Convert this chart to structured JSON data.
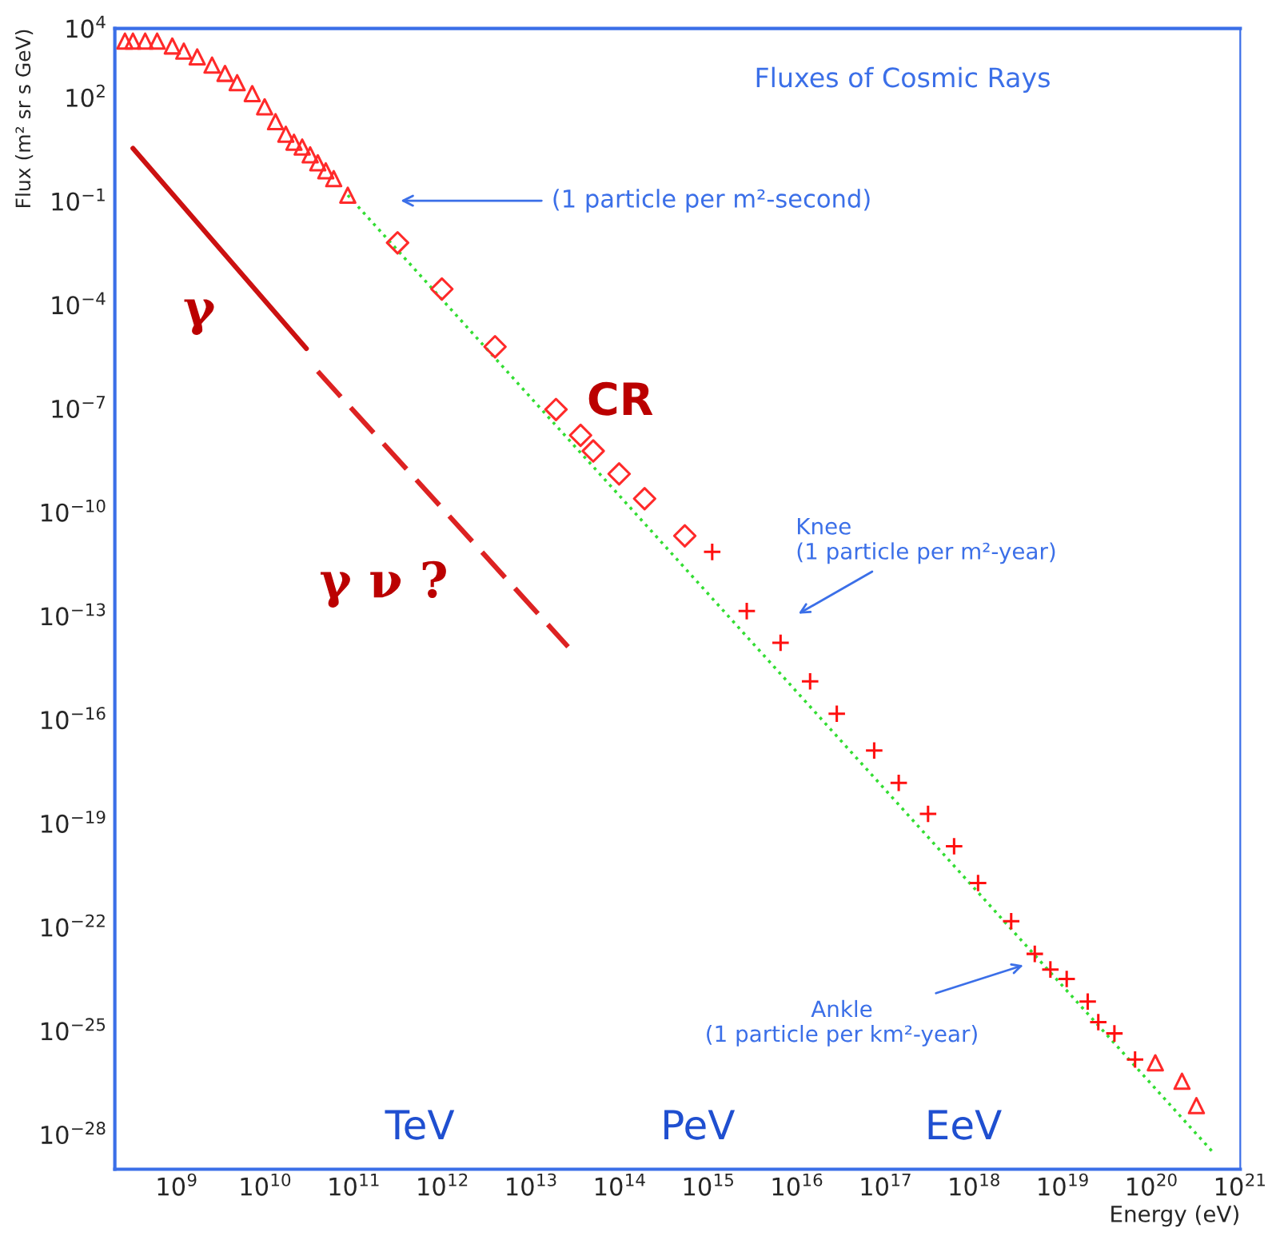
{
  "chart_data": {
    "type": "scatter",
    "title": "Fluxes of Cosmic Rays",
    "xlabel": "Energy (eV)",
    "ylabel": "Flux (m² sr s GeV)",
    "log": "xy",
    "xlim": [
      200000000.0,
      1e+21
    ],
    "ylim": [
      1e-29,
      10000.0
    ],
    "xticks": [
      {
        "value": 1000000000.0,
        "label": "10$^{9}$"
      },
      {
        "value": 10000000000.0,
        "label": "10$^{10}$"
      },
      {
        "value": 100000000000.0,
        "label": "10$^{11}$"
      },
      {
        "value": 1000000000000.0,
        "label": "10$^{12}$"
      },
      {
        "value": 10000000000000.0,
        "label": "10$^{13}$"
      },
      {
        "value": 100000000000000.0,
        "label": "10$^{14}$"
      },
      {
        "value": 1000000000000000.0,
        "label": "10$^{15}$"
      },
      {
        "value": 1e+16,
        "label": "10$^{16}$"
      },
      {
        "value": 1e+17,
        "label": "10$^{17}$"
      },
      {
        "value": 1e+18,
        "label": "10$^{18}$"
      },
      {
        "value": 1e+19,
        "label": "10$^{19}$"
      },
      {
        "value": 1e+20,
        "label": "10$^{20}$"
      },
      {
        "value": 1e+21,
        "label": "10$^{21}$"
      }
    ],
    "yticks": [
      {
        "value": 10000.0,
        "label": "10$^{4}$"
      },
      {
        "value": 100.0,
        "label": "10$^{2}$"
      },
      {
        "value": 0.1,
        "label": "10$^{−1}$"
      },
      {
        "value": 0.0001,
        "label": "10$^{−4}$"
      },
      {
        "value": 1e-07,
        "label": "10$^{−7}$"
      },
      {
        "value": 1e-10,
        "label": "10$^{−10}$"
      },
      {
        "value": 1e-13,
        "label": "10$^{−13}$"
      },
      {
        "value": 1e-16,
        "label": "10$^{−16}$"
      },
      {
        "value": 1e-19,
        "label": "10$^{−19}$"
      },
      {
        "value": 1e-22,
        "label": "10$^{−22}$"
      },
      {
        "value": 1e-25,
        "label": "10$^{−25}$"
      },
      {
        "value": 1e-28,
        "label": "10$^{−28}$"
      }
    ],
    "series": [
      {
        "marker": "triangle",
        "color": "#ff2a2a",
        "x": [
          260000000.0,
          320000000.0,
          440000000.0,
          600000000.0,
          890000000.0,
          1200000000.0,
          1700000000.0,
          2500000000.0,
          3500000000.0,
          4800000000.0,
          7100000000.0,
          9800000000.0,
          13000000000.0,
          17000000000.0,
          21000000000.0,
          26000000000.0,
          32000000000.0,
          39000000000.0,
          48000000000.0,
          59000000000.0,
          85000000000.0,
          1.1e+20,
          2.2e+20,
          3.2e+20
        ],
        "values": [
          4300.0,
          4300.0,
          4300.0,
          4300.0,
          3100.0,
          2200.0,
          1500.0,
          870.0,
          500.0,
          270.0,
          130.0,
          54,
          20,
          8.7,
          5.1,
          3.7,
          2.2,
          1.3,
          0.76,
          0.45,
          0.15,
          1.2e-26,
          3.5e-27,
          6.9e-28
        ]
      },
      {
        "marker": "diamond",
        "color": "#ff2a2a",
        "x": [
          310000000000.0,
          980000000000.0,
          3900000000000.0,
          19000000000000.0,
          36000000000000.0,
          50000000000000.0,
          98000000000000.0,
          190000000000000.0,
          540000000000000.0
        ],
        "values": [
          0.0063,
          0.00029,
          6.2e-06,
          9.5e-08,
          1.7e-08,
          6e-09,
          1.3e-09,
          2.5e-10,
          2.1e-11
        ]
      },
      {
        "marker": "cross",
        "color": "#ff1010",
        "x": [
          1100000000000000.0,
          2700000000000000.0,
          6500000000000000.0,
          1.4e+16,
          2.8e+16,
          7.4e+16,
          1.4e+17,
          3e+17,
          5.9e+17,
          1.1e+18,
          2.6e+18,
          4.8e+18,
          7.2e+18,
          1.1e+19,
          1.9e+19,
          2.5e+19,
          3.8e+19,
          6.5e+19
        ],
        "values": [
          7.2e-12,
          1.4e-13,
          1.7e-14,
          1.3e-15,
          1.5e-16,
          1.3e-17,
          1.5e-18,
          1.9e-19,
          2.2e-20,
          1.9e-21,
          1.5e-22,
          1.7e-23,
          6e-24,
          3.2e-24,
          7.1e-25,
          1.8e-25,
          8.5e-26,
          1.5e-26
        ]
      },
      {
        "type": "line",
        "line_style": "dotted",
        "color": "#33dd33",
        "x": [
          85000000000.0,
          5.1e+20
        ],
        "values": [
          0.15,
          2.8e-29
        ]
      },
      {
        "type": "line",
        "line_style": "solid",
        "color": "#cc1111",
        "x": [
          320000000.0,
          29000000000.0
        ],
        "values": [
          3.4,
          5.5e-06
        ]
      },
      {
        "type": "line",
        "line_style": "dashed",
        "color": "#dd2222",
        "x": [
          39000000000.0,
          26000000000000.0
        ],
        "values": [
          1.2e-06,
          1.3e-14
        ]
      }
    ],
    "annotations": [
      "(1 particle per m²-second)",
      "Knee\n(1 particle per m²-year)",
      "Ankle\n(1 particle per km²-year)",
      "γ",
      "γ ν ?",
      "CR",
      "TeV",
      "PeV",
      "EeV"
    ]
  }
}
